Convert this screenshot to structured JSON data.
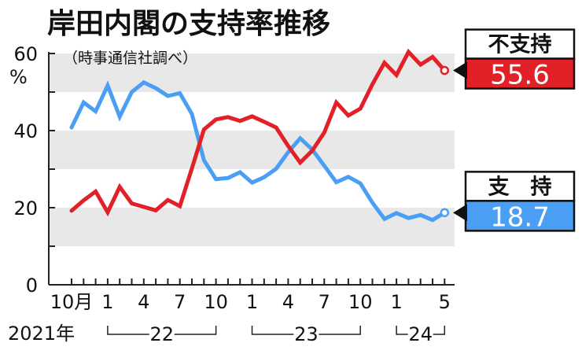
{
  "chart_data": {
    "type": "line",
    "title": "岸田内閣の支持率推移",
    "subtitle": "（時事通信社調べ）",
    "ylabel": "%",
    "ylim": [
      0,
      60
    ],
    "yticks": [
      0,
      20,
      40,
      60
    ],
    "grid": "alternating horizontal bands",
    "x": [
      "2021-10",
      "2021-11",
      "2021-12",
      "2022-01",
      "2022-02",
      "2022-03",
      "2022-04",
      "2022-05",
      "2022-06",
      "2022-07",
      "2022-08",
      "2022-09",
      "2022-10",
      "2022-11",
      "2022-12",
      "2023-01",
      "2023-02",
      "2023-03",
      "2023-04",
      "2023-05",
      "2023-06",
      "2023-07",
      "2023-08",
      "2023-09",
      "2023-10",
      "2023-11",
      "2023-12",
      "2024-01",
      "2024-02",
      "2024-03",
      "2024-04",
      "2024-05"
    ],
    "x_tick_labels": [
      {
        "label": "10月",
        "x": "2021-10"
      },
      {
        "label": "1",
        "x": "2022-01"
      },
      {
        "label": "4",
        "x": "2022-04"
      },
      {
        "label": "7",
        "x": "2022-07"
      },
      {
        "label": "10",
        "x": "2022-10"
      },
      {
        "label": "1",
        "x": "2023-01"
      },
      {
        "label": "4",
        "x": "2023-04"
      },
      {
        "label": "7",
        "x": "2023-07"
      },
      {
        "label": "10",
        "x": "2023-10"
      },
      {
        "label": "1",
        "x": "2024-01"
      },
      {
        "label": "5",
        "x": "2024-05"
      }
    ],
    "year_labels": [
      {
        "label": "2021年",
        "from": "2021-10",
        "to": "2021-10"
      },
      {
        "label": "22",
        "from": "2022-01",
        "to": "2022-10"
      },
      {
        "label": "23",
        "from": "2023-01",
        "to": "2023-10"
      },
      {
        "label": "24",
        "from": "2024-01",
        "to": "2024-05"
      }
    ],
    "series": [
      {
        "name": "支　持",
        "color": "#4a9ff5",
        "values": [
          40.8,
          47.3,
          45.0,
          51.7,
          43.6,
          50.0,
          52.5,
          51.0,
          49.0,
          49.7,
          44.3,
          32.3,
          27.4,
          27.7,
          29.2,
          26.5,
          27.9,
          30.1,
          34.4,
          38.0,
          35.1,
          30.9,
          26.6,
          28.0,
          26.3,
          21.3,
          17.1,
          18.6,
          17.3,
          18.1,
          16.8,
          18.7
        ],
        "end_label": "18.7"
      },
      {
        "name": "不支持",
        "color": "#e12028",
        "values": [
          19.2,
          21.9,
          24.2,
          18.8,
          25.4,
          21.1,
          20.2,
          19.3,
          22.0,
          20.4,
          30.2,
          40.3,
          42.9,
          43.5,
          42.5,
          43.7,
          42.3,
          40.8,
          36.0,
          31.7,
          34.8,
          39.5,
          47.3,
          43.9,
          45.7,
          52.0,
          57.6,
          54.4,
          60.4,
          57.1,
          59.1,
          55.6
        ],
        "end_label": "55.6"
      }
    ]
  }
}
